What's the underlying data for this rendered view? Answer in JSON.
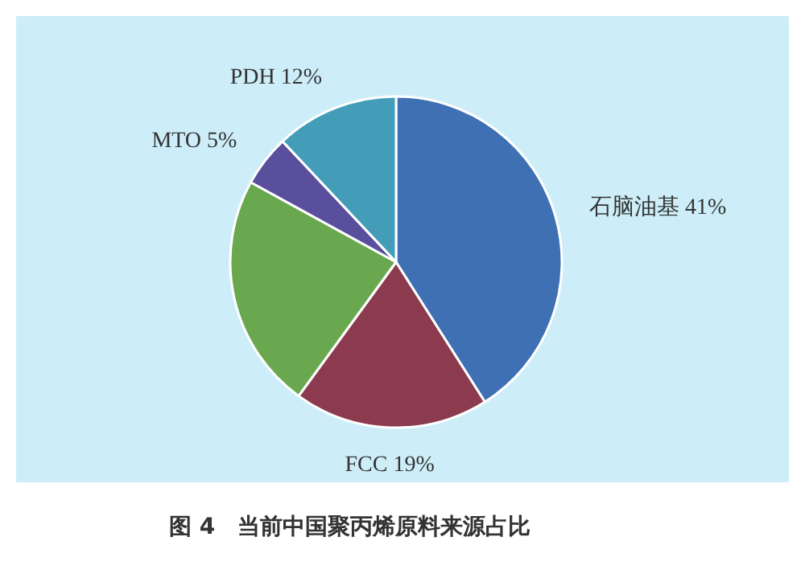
{
  "chart_data": {
    "type": "pie",
    "title": "图 4　当前中国聚丙烯原料来源占比",
    "categories": [
      "石脑油基",
      "FCC",
      null,
      "MTO",
      "PDH"
    ],
    "values": [
      41,
      19,
      23,
      5,
      12
    ],
    "colors": [
      "#3f70b4",
      "#8c3b4f",
      "#6aa84f",
      "#5a4f9c",
      "#439db9"
    ],
    "value_labels": [
      "41%",
      "19%",
      null,
      "5%",
      "12%"
    ]
  }
}
